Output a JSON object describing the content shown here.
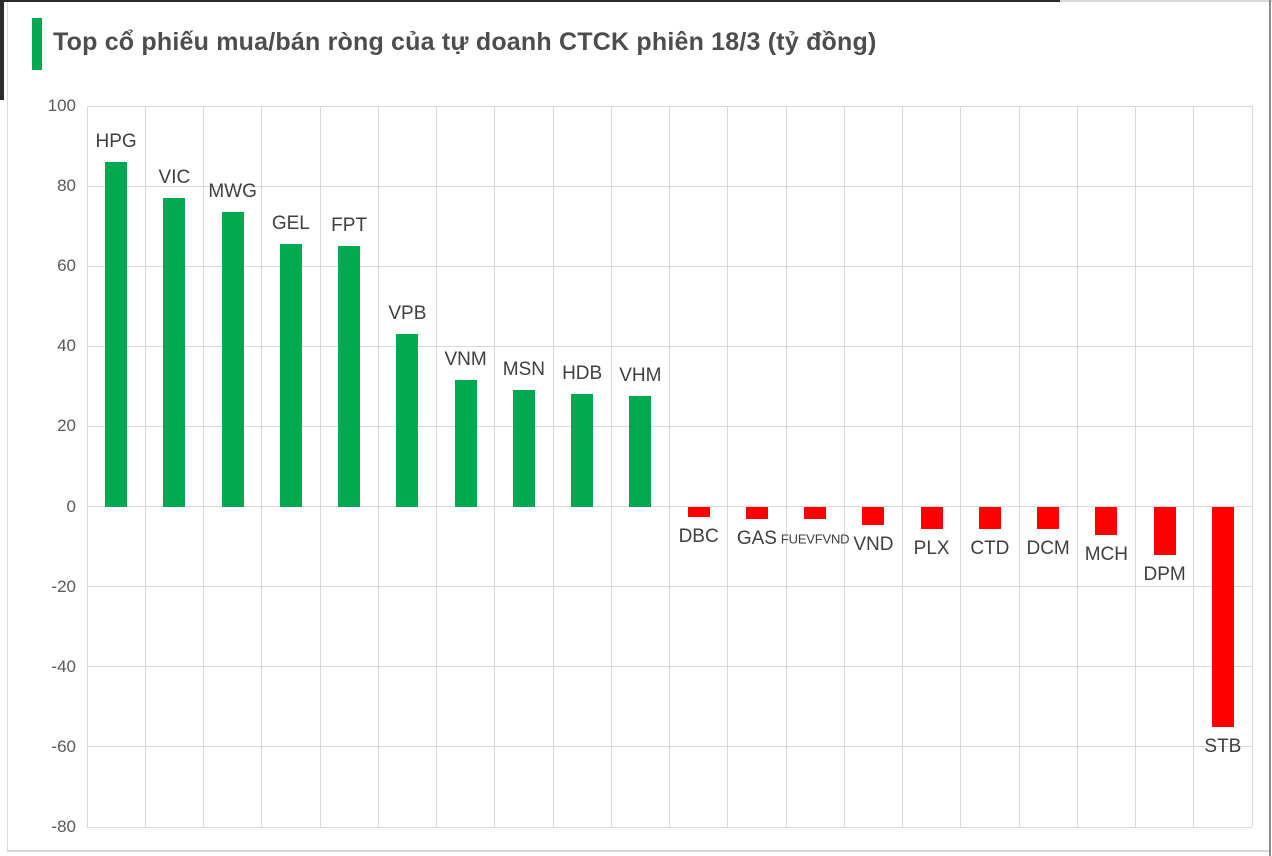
{
  "header": {
    "title": "Top cổ phiếu mua/bán ròng của tự doanh CTCK phiên 18/3 (tỷ đồng)",
    "accent_color": "#00A850"
  },
  "chart_data": {
    "type": "bar",
    "title": "Top cổ phiếu mua/bán ròng của tự doanh CTCK phiên 18/3 (tỷ đồng)",
    "unit": "tỷ đồng",
    "categories": [
      "HPG",
      "VIC",
      "MWG",
      "GEL",
      "FPT",
      "VPB",
      "VNM",
      "MSN",
      "HDB",
      "VHM",
      "DBC",
      "GAS",
      "FUEVFVND",
      "VND",
      "PLX",
      "CTD",
      "DCM",
      "MCH",
      "DPM",
      "STB"
    ],
    "values": [
      86,
      77,
      73.5,
      65.5,
      65,
      43,
      31.5,
      29,
      28,
      27.5,
      -2.5,
      -3,
      -3,
      -4.5,
      -5.5,
      -5.5,
      -5.5,
      -7,
      -12,
      -55
    ],
    "positive_color": "#00A850",
    "negative_color": "#FF0000",
    "ylim": [
      -80,
      100
    ],
    "yticks": [
      100,
      80,
      60,
      40,
      20,
      0,
      -20,
      -40,
      -60,
      -80
    ],
    "grid": true,
    "legend": "none",
    "gridline_color": "#D9D9D9",
    "axis_label_color": "#595959",
    "category_label_color": "#3F3F3F",
    "small_label_categories": [
      "FUEVFVND"
    ]
  }
}
